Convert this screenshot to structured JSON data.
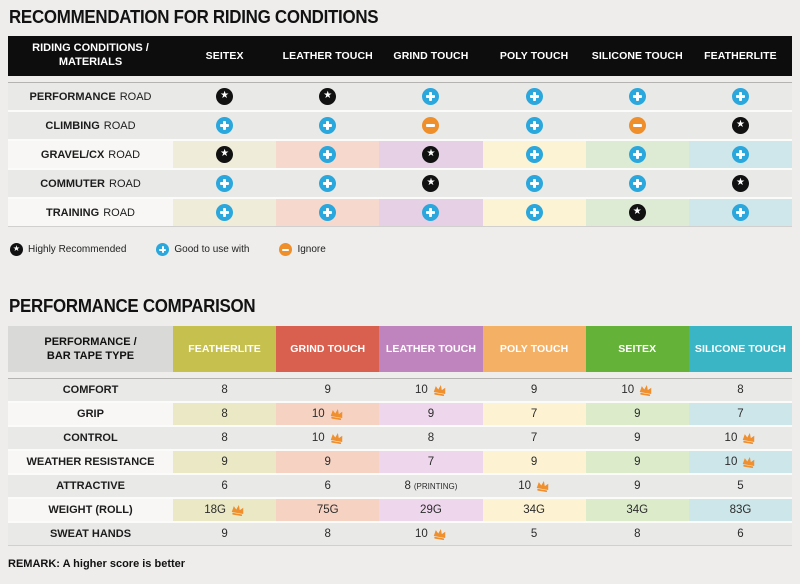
{
  "chart_data": [
    {
      "type": "table",
      "title": "RECOMMENDATION FOR RIDING CONDITIONS",
      "header_label_line1": "RIDING CONDITIONS /",
      "header_label_line2": "MATERIALS",
      "columns": [
        "SEITEX",
        "LEATHER TOUCH",
        "GRIND TOUCH",
        "POLY TOUCH",
        "SILICONE TOUCH",
        "FEATHERLITE"
      ],
      "rows": [
        {
          "name": "PERFORMANCE",
          "suffix": "ROAD",
          "colored": false,
          "cells": [
            "star",
            "star",
            "plus",
            "plus",
            "plus",
            "plus"
          ]
        },
        {
          "name": "CLIMBING",
          "suffix": "ROAD",
          "colored": false,
          "cells": [
            "plus",
            "plus",
            "minus",
            "plus",
            "minus",
            "star"
          ]
        },
        {
          "name": "GRAVEL/CX",
          "suffix": "ROAD",
          "colored": true,
          "cells": [
            "star",
            "plus",
            "star",
            "plus",
            "plus",
            "plus"
          ]
        },
        {
          "name": "COMMUTER",
          "suffix": "ROAD",
          "colored": false,
          "cells": [
            "plus",
            "plus",
            "star",
            "plus",
            "plus",
            "star"
          ]
        },
        {
          "name": "TRAINING",
          "suffix": "ROAD",
          "colored": true,
          "cells": [
            "plus",
            "plus",
            "plus",
            "plus",
            "star",
            "plus"
          ]
        }
      ],
      "column_tints": [
        "#efecd9",
        "#f7d8cd",
        "#e6d0e5",
        "#fbf3d3",
        "#ddebd4",
        "#cfe7eb"
      ],
      "legend": [
        {
          "icon": "star",
          "label": "Highly Recommended"
        },
        {
          "icon": "plus",
          "label": "Good to use with"
        },
        {
          "icon": "minus",
          "label": "Ignore"
        }
      ]
    },
    {
      "type": "table",
      "title": "PERFORMANCE COMPARISON",
      "header_label_line1": "PERFORMANCE /",
      "header_label_line2": "BAR TAPE TYPE",
      "columns": [
        {
          "label": "FEATHERLITE",
          "color": "#c6c04f"
        },
        {
          "label": "GRIND TOUCH",
          "color": "#d95f4e"
        },
        {
          "label": "LEATHER TOUCH",
          "color": "#bf84be"
        },
        {
          "label": "POLY TOUCH",
          "color": "#f4b166"
        },
        {
          "label": "SEITEX",
          "color": "#64b238"
        },
        {
          "label": "SILICONE TOUCH",
          "color": "#39b5c6"
        }
      ],
      "rows": [
        {
          "label": "COMFORT",
          "colored": false,
          "cells": [
            {
              "v": "8"
            },
            {
              "v": "9"
            },
            {
              "v": "10",
              "crown": true
            },
            {
              "v": "9"
            },
            {
              "v": "10",
              "crown": true
            },
            {
              "v": "8"
            }
          ]
        },
        {
          "label": "GRIP",
          "colored": true,
          "cells": [
            {
              "v": "8"
            },
            {
              "v": "10",
              "crown": true
            },
            {
              "v": "9"
            },
            {
              "v": "7"
            },
            {
              "v": "9"
            },
            {
              "v": "7"
            }
          ]
        },
        {
          "label": "CONTROL",
          "colored": false,
          "cells": [
            {
              "v": "8"
            },
            {
              "v": "10",
              "crown": true
            },
            {
              "v": "8"
            },
            {
              "v": "7"
            },
            {
              "v": "9"
            },
            {
              "v": "10",
              "crown": true
            }
          ]
        },
        {
          "label": "WEATHER RESISTANCE",
          "colored": true,
          "cells": [
            {
              "v": "9"
            },
            {
              "v": "9"
            },
            {
              "v": "7"
            },
            {
              "v": "9"
            },
            {
              "v": "9"
            },
            {
              "v": "10",
              "crown": true
            }
          ]
        },
        {
          "label": "ATTRACTIVE",
          "colored": false,
          "cells": [
            {
              "v": "6"
            },
            {
              "v": "6"
            },
            {
              "v": "8",
              "note": "(PRINTING)"
            },
            {
              "v": "10",
              "crown": true
            },
            {
              "v": "9"
            },
            {
              "v": "5"
            }
          ]
        },
        {
          "label": "WEIGHT (ROLL)",
          "colored": true,
          "cells": [
            {
              "v": "18G",
              "crown": true
            },
            {
              "v": "75G"
            },
            {
              "v": "29G"
            },
            {
              "v": "34G"
            },
            {
              "v": "34G"
            },
            {
              "v": "83G"
            }
          ]
        },
        {
          "label": "SWEAT HANDS",
          "colored": false,
          "cells": [
            {
              "v": "9"
            },
            {
              "v": "8"
            },
            {
              "v": "10",
              "crown": true
            },
            {
              "v": "5"
            },
            {
              "v": "8"
            },
            {
              "v": "6"
            }
          ]
        }
      ],
      "column_tints": [
        "#ebe9c5",
        "#f6d2c2",
        "#eed7ec",
        "#fdf3d2",
        "#dcecca",
        "#cde6e9"
      ],
      "remark": "REMARK: A higher score is better"
    }
  ],
  "colors": {
    "page_bg": "#eeedec",
    "table_header_bg": "#0d0d0d",
    "header_label_bg": "#d9d9d7",
    "row_gray": "#e9e9e8",
    "row_label_light": "#f8f7f5",
    "icon_plus": "#2aa7dc",
    "icon_minus": "#ee8f2c",
    "icon_star_bg": "#111111",
    "crown": "#ef8f2e"
  }
}
